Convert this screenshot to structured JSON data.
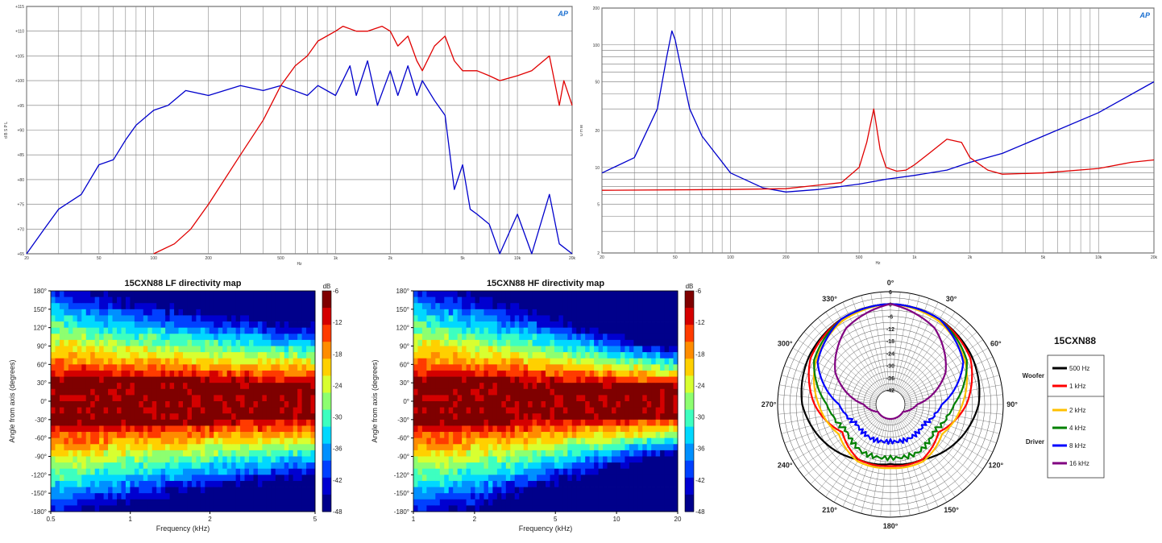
{
  "fr_chart": {
    "logo": "AP",
    "xticks": [
      "20",
      "50",
      "100",
      "200",
      "500",
      "1k",
      "2k",
      "5k",
      "10k",
      "20k"
    ],
    "xtick_vals": [
      20,
      50,
      100,
      200,
      500,
      1000,
      2000,
      5000,
      10000,
      20000
    ],
    "xlabel": "Hz",
    "ylabel": "d B S P L",
    "ylim": [
      65,
      115
    ],
    "yticks": [
      "+65",
      "+70",
      "+75",
      "+80",
      "+85",
      "+90",
      "+95",
      "+100",
      "+105",
      "+110",
      "+115"
    ],
    "ytick_vals": [
      65,
      70,
      75,
      80,
      85,
      90,
      95,
      100,
      105,
      110,
      115
    ]
  },
  "imp_chart": {
    "logo": "AP",
    "xticks": [
      "20",
      "50",
      "100",
      "200",
      "500",
      "1k",
      "2k",
      "5k",
      "10k",
      "20k"
    ],
    "xtick_vals": [
      20,
      50,
      100,
      200,
      500,
      1000,
      2000,
      5000,
      10000,
      20000
    ],
    "xlabel": "Hz",
    "ylabel": "O H M",
    "yticks": [
      "2",
      "5",
      "10",
      "20",
      "50",
      "100",
      "200"
    ],
    "ytick_vals": [
      2,
      5,
      10,
      20,
      50,
      100,
      200
    ]
  },
  "lf_map": {
    "title": "15CXN88 LF directivity map",
    "xlabel": "Frequency (kHz)",
    "ylabel": "Angle from axis (degrees)",
    "xticks": [
      "0.5",
      "1",
      "2",
      "5"
    ],
    "xtick_vals": [
      0.5,
      1,
      2,
      5
    ],
    "yticks": [
      "180°",
      "150°",
      "120°",
      "90°",
      "60°",
      "30°",
      "0°",
      "-30°",
      "-60°",
      "-90°",
      "-120°",
      "-150°",
      "-180°"
    ]
  },
  "hf_map": {
    "title": "15CXN88 HF directivity map",
    "xlabel": "Frequency (kHz)",
    "ylabel": "Angle from axis (degrees)",
    "xticks": [
      "1",
      "2",
      "5",
      "10",
      "20"
    ],
    "xtick_vals": [
      1,
      2,
      5,
      10,
      20
    ],
    "yticks": [
      "180°",
      "150°",
      "120°",
      "90°",
      "60°",
      "30°",
      "0°",
      "-30°",
      "-60°",
      "-90°",
      "-120°",
      "-150°",
      "-180°"
    ]
  },
  "colorbar": {
    "unit": "dB",
    "ticks": [
      "-6",
      "-12",
      "-18",
      "-24",
      "-30",
      "-36",
      "-42",
      "-48"
    ],
    "tick_vals": [
      -6,
      -12,
      -18,
      -24,
      -30,
      -36,
      -42,
      -48
    ]
  },
  "polar": {
    "angle_labels": [
      "0°",
      "30°",
      "60°",
      "90°",
      "120°",
      "150°",
      "180°",
      "210°",
      "240°",
      "270°",
      "300°",
      "330°"
    ],
    "radial_labels": [
      "6",
      "0",
      "-6",
      "-12",
      "-18",
      "-24",
      "-30",
      "-36",
      "-42"
    ],
    "legend_title": "15CXN88",
    "group_woofer": "Woofer",
    "group_driver": "Driver",
    "entries": [
      {
        "name": "500 Hz",
        "color": "#000000"
      },
      {
        "name": "1 kHz",
        "color": "#ff0000"
      },
      {
        "name": "2 kHz",
        "color": "#ffc000"
      },
      {
        "name": "4 kHz",
        "color": "#008000"
      },
      {
        "name": "8 kHz",
        "color": "#0000ff"
      },
      {
        "name": "16 kHz",
        "color": "#800080"
      }
    ]
  },
  "chart_data": [
    {
      "type": "line",
      "x_scale": "log",
      "xlim": [
        20,
        20000
      ],
      "ylim": [
        65,
        115
      ],
      "series": [
        {
          "color": "#0000cc",
          "x": [
            20,
            25,
            30,
            40,
            50,
            60,
            70,
            80,
            100,
            120,
            150,
            200,
            300,
            400,
            500,
            700,
            800,
            1000,
            1200,
            1300,
            1500,
            1700,
            2000,
            2200,
            2500,
            2800,
            3000,
            3500,
            4000,
            4500,
            5000,
            5500,
            6000,
            7000,
            8000,
            10000,
            12000,
            15000,
            17000,
            20000
          ],
          "y": [
            65,
            70,
            74,
            77,
            83,
            84,
            88,
            91,
            94,
            95,
            98,
            97,
            99,
            98,
            99,
            97,
            99,
            97,
            103,
            97,
            104,
            95,
            102,
            97,
            103,
            97,
            100,
            96,
            93,
            78,
            83,
            74,
            73,
            71,
            65,
            73,
            63,
            77,
            67,
            65
          ]
        },
        {
          "color": "#e00000",
          "x": [
            100,
            130,
            160,
            200,
            300,
            400,
            500,
            600,
            700,
            800,
            1000,
            1100,
            1300,
            1500,
            1800,
            2000,
            2200,
            2500,
            2800,
            3000,
            3500,
            4000,
            4500,
            5000,
            6000,
            7000,
            8000,
            10000,
            12000,
            15000,
            17000,
            18000,
            20000
          ],
          "y": [
            65,
            67,
            70,
            75,
            85,
            92,
            99,
            103,
            105,
            108,
            110,
            111,
            110,
            110,
            111,
            110,
            107,
            109,
            104,
            102,
            107,
            109,
            104,
            102,
            102,
            101,
            100,
            101,
            102,
            105,
            95,
            100,
            95
          ]
        }
      ]
    },
    {
      "type": "line",
      "x_scale": "log",
      "y_scale": "log",
      "xlim": [
        20,
        20000
      ],
      "ylim": [
        2,
        200
      ],
      "series": [
        {
          "color": "#0000cc",
          "x": [
            20,
            30,
            40,
            45,
            48,
            50,
            55,
            60,
            70,
            100,
            150,
            200,
            300,
            500,
            700,
            1000,
            1500,
            2000,
            3000,
            5000,
            10000,
            20000
          ],
          "y": [
            9,
            12,
            30,
            80,
            130,
            110,
            55,
            30,
            18,
            9,
            6.8,
            6.3,
            6.6,
            7.3,
            8.0,
            8.6,
            9.5,
            11,
            13,
            18,
            28,
            50
          ]
        },
        {
          "color": "#e00000",
          "x": [
            20,
            100,
            200,
            400,
            500,
            550,
            600,
            650,
            700,
            800,
            900,
            1000,
            1200,
            1500,
            1800,
            2000,
            2500,
            3000,
            5000,
            10000,
            15000,
            20000
          ],
          "y": [
            6.5,
            6.6,
            6.7,
            7.5,
            10,
            16,
            30,
            14,
            10,
            9.3,
            9.5,
            10.5,
            13,
            17,
            16,
            12,
            9.5,
            8.8,
            9.0,
            9.8,
            11,
            11.5
          ]
        }
      ]
    },
    {
      "type": "heatmap",
      "title": "15CXN88 LF directivity map",
      "x_range_khz": [
        0.5,
        5
      ],
      "y_range_deg": [
        -180,
        180
      ],
      "z_range_db": [
        -48,
        -6
      ]
    },
    {
      "type": "heatmap",
      "title": "15CXN88 HF directivity map",
      "x_range_khz": [
        1,
        20
      ],
      "y_range_deg": [
        -180,
        180
      ],
      "z_range_db": [
        -48,
        -6
      ]
    },
    {
      "type": "line",
      "projection": "polar",
      "r_range_db": [
        -42,
        6
      ],
      "series": [
        {
          "name": "500 Hz",
          "color": "#000000",
          "beam_deg": [
            0,
            30,
            60,
            90,
            120,
            150,
            180
          ],
          "level_db": [
            0,
            -1,
            -3,
            -6,
            -12,
            -18,
            -20
          ]
        },
        {
          "name": "1 kHz",
          "color": "#ff0000",
          "beam_deg": [
            0,
            30,
            60,
            90,
            120,
            150,
            180
          ],
          "level_db": [
            0,
            -1,
            -4,
            -12,
            -22,
            -18,
            -19
          ]
        },
        {
          "name": "2 kHz",
          "color": "#ffc000",
          "beam_deg": [
            0,
            30,
            60,
            90,
            120,
            150,
            180
          ],
          "level_db": [
            0,
            -2,
            -7,
            -14,
            -20,
            -17,
            -18
          ]
        },
        {
          "name": "4 kHz",
          "color": "#008000",
          "beam_deg": [
            0,
            30,
            60,
            90,
            120,
            150,
            180
          ],
          "level_db": [
            0,
            -1,
            -6,
            -18,
            -24,
            -22,
            -23
          ]
        },
        {
          "name": "8 kHz",
          "color": "#0000ff",
          "beam_deg": [
            0,
            30,
            60,
            90,
            120,
            150,
            180
          ],
          "level_db": [
            0,
            -1,
            -8,
            -24,
            -30,
            -30,
            -31
          ]
        },
        {
          "name": "16 kHz",
          "color": "#800080",
          "beam_deg": [
            0,
            30,
            60,
            90,
            120,
            150,
            180
          ],
          "level_db": [
            0,
            -6,
            -18,
            -36,
            -42,
            -42,
            -42
          ]
        }
      ]
    }
  ]
}
